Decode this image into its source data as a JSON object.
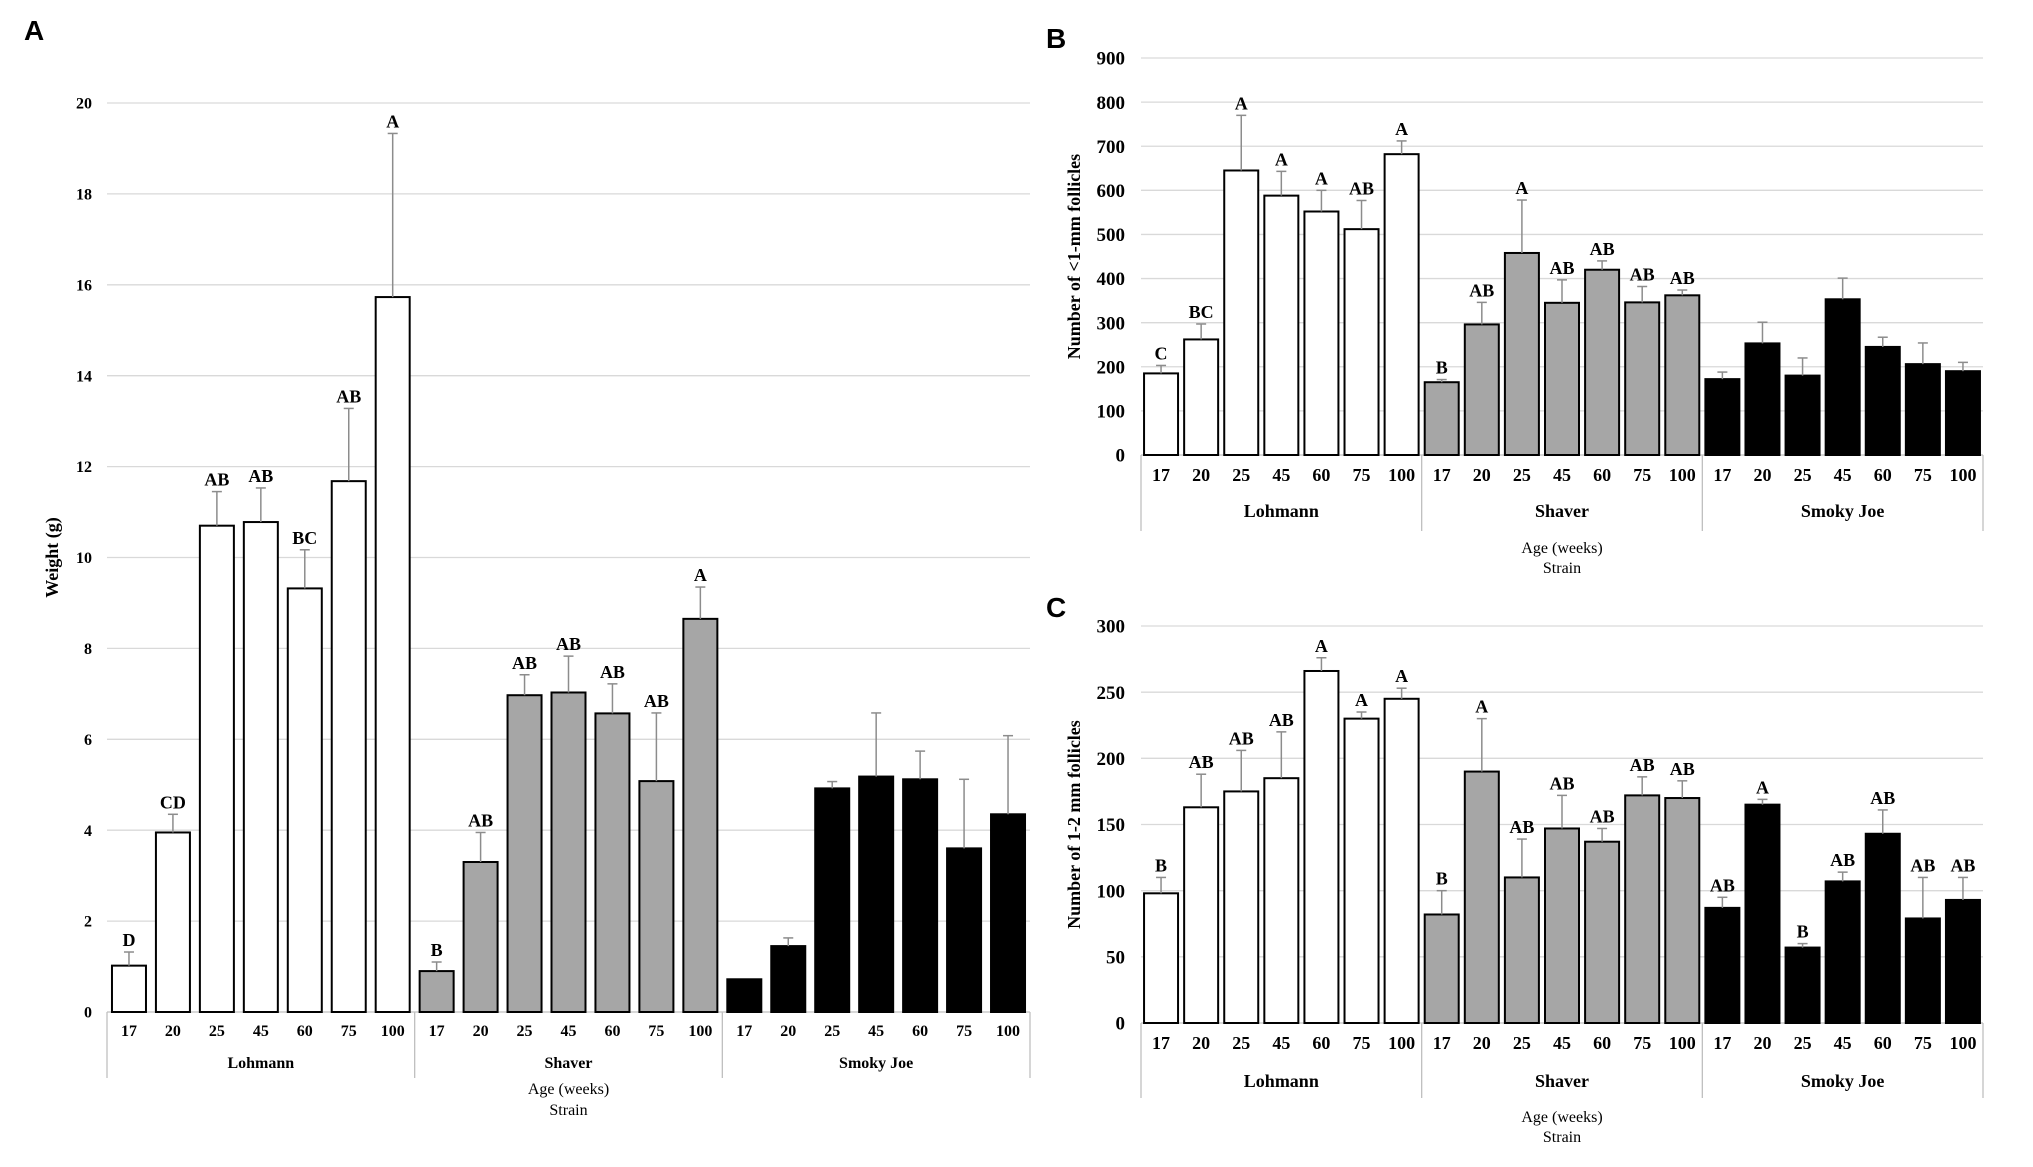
{
  "chart_data": [
    {
      "panel": "A",
      "type": "bar",
      "ylabel": "Weight (g)",
      "xlabel": "Age (weeks)",
      "xlabel2": "Strain",
      "ylim": [
        0,
        20
      ],
      "yticks": [
        0,
        2,
        4,
        6,
        8,
        10,
        12,
        14,
        16,
        18,
        20
      ],
      "categories": [
        "17",
        "20",
        "25",
        "45",
        "60",
        "75",
        "100"
      ],
      "series": [
        {
          "name": "Lohmann",
          "color": "#ffffff",
          "values": [
            1.02,
            3.95,
            10.7,
            10.78,
            9.32,
            11.68,
            15.73
          ],
          "errors": [
            0.3,
            0.4,
            0.75,
            0.75,
            0.85,
            1.6,
            3.6
          ],
          "letters": [
            "D",
            "CD",
            "AB",
            "AB",
            "BC",
            "AB",
            "A"
          ]
        },
        {
          "name": "Shaver",
          "color": "#a6a6a6",
          "values": [
            0.9,
            3.3,
            6.97,
            7.03,
            6.57,
            5.08,
            8.65
          ],
          "errors": [
            0.2,
            0.65,
            0.45,
            0.8,
            0.65,
            1.5,
            0.7
          ],
          "letters": [
            "B",
            "AB",
            "AB",
            "AB",
            "AB",
            "AB",
            "A"
          ]
        },
        {
          "name": "Smoky Joe",
          "color": "#000000",
          "values": [
            0.72,
            1.45,
            4.92,
            5.18,
            5.12,
            3.6,
            4.35
          ],
          "errors": [
            0,
            0.18,
            0.15,
            1.4,
            0.62,
            1.52,
            1.73
          ],
          "letters": [
            "",
            "",
            "",
            "",
            "",
            "",
            ""
          ]
        }
      ]
    },
    {
      "panel": "B",
      "type": "bar",
      "ylabel": "Number of <1-mm follicles",
      "xlabel": "Age (weeks)",
      "xlabel2": "Strain",
      "ylim": [
        0,
        900
      ],
      "yticks": [
        0,
        100,
        200,
        300,
        400,
        500,
        600,
        700,
        800,
        900
      ],
      "categories": [
        "17",
        "20",
        "25",
        "45",
        "60",
        "75",
        "100"
      ],
      "series": [
        {
          "name": "Lohmann",
          "color": "#ffffff",
          "values": [
            185,
            262,
            645,
            588,
            552,
            512,
            682
          ],
          "errors": [
            18,
            35,
            125,
            55,
            48,
            65,
            30
          ],
          "letters": [
            "C",
            "BC",
            "A",
            "A",
            "A",
            "AB",
            "A"
          ]
        },
        {
          "name": "Shaver",
          "color": "#a6a6a6",
          "values": [
            165,
            296,
            458,
            345,
            420,
            346,
            362
          ],
          "errors": [
            6,
            50,
            120,
            52,
            20,
            36,
            12
          ],
          "letters": [
            "B",
            "AB",
            "A",
            "AB",
            "AB",
            "AB",
            "AB"
          ]
        },
        {
          "name": "Smoky Joe",
          "color": "#000000",
          "values": [
            172,
            253,
            180,
            353,
            245,
            206,
            190
          ],
          "errors": [
            16,
            48,
            40,
            48,
            22,
            48,
            20
          ],
          "letters": [
            "",
            "",
            "",
            "",
            "",
            "",
            ""
          ]
        }
      ]
    },
    {
      "panel": "C",
      "type": "bar",
      "ylabel": "Number of 1-2 mm follicles",
      "xlabel": "Age (weeks)",
      "xlabel2": "Strain",
      "ylim": [
        0,
        300
      ],
      "yticks": [
        0,
        50,
        100,
        150,
        200,
        250,
        300
      ],
      "categories": [
        "17",
        "20",
        "25",
        "45",
        "60",
        "75",
        "100"
      ],
      "series": [
        {
          "name": "Lohmann",
          "color": "#ffffff",
          "values": [
            98,
            163,
            175,
            185,
            266,
            230,
            245
          ],
          "errors": [
            12,
            25,
            31,
            35,
            10,
            5,
            8
          ],
          "letters": [
            "B",
            "AB",
            "AB",
            "AB",
            "A",
            "A",
            "A"
          ]
        },
        {
          "name": "Shaver",
          "color": "#a6a6a6",
          "values": [
            82,
            190,
            110,
            147,
            137,
            172,
            170
          ],
          "errors": [
            18,
            40,
            29,
            25,
            10,
            14,
            13
          ],
          "letters": [
            "B",
            "A",
            "AB",
            "AB",
            "AB",
            "AB",
            "AB"
          ]
        },
        {
          "name": "Smoky Joe",
          "color": "#000000",
          "values": [
            87,
            165,
            57,
            107,
            143,
            79,
            93
          ],
          "errors": [
            8,
            4,
            3,
            7,
            18,
            31,
            17
          ],
          "letters": [
            "AB",
            "A",
            "B",
            "AB",
            "AB",
            "AB",
            "AB"
          ]
        }
      ]
    }
  ]
}
